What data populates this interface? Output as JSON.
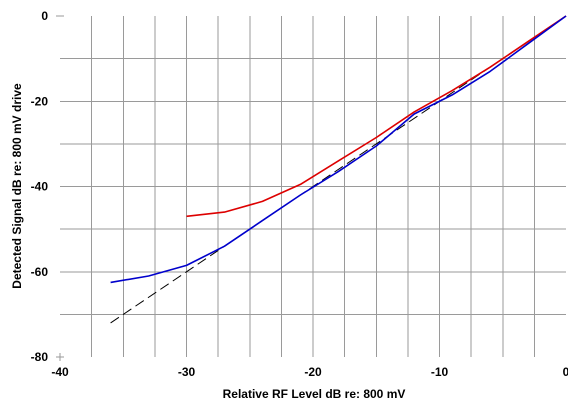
{
  "chart_data": {
    "type": "line",
    "title": "",
    "xlabel": "Relative RF Level dB re: 800 mV",
    "ylabel": "Detected Signal dB re: 800 mV drive",
    "xlim": [
      -40,
      0
    ],
    "ylim": [
      -80,
      0
    ],
    "xticks": [
      -40,
      -30,
      -20,
      -10,
      0
    ],
    "xtick_labels": [
      "-40",
      "-30",
      "-20",
      "-10",
      "0"
    ],
    "yticks": [
      -80,
      -60,
      -40,
      -20,
      0
    ],
    "ytick_labels": [
      "-80",
      "-60",
      "-40",
      "-20",
      "0"
    ],
    "grid": true,
    "grid_minor_x": 2.5,
    "grid_minor_y": 10,
    "legend": "none",
    "series": [
      {
        "color": "#000000",
        "style": "dashed",
        "x": [
          -36,
          -30,
          -20,
          -10,
          0
        ],
        "y": [
          -72,
          -60,
          -40,
          -20,
          0
        ]
      },
      {
        "color": "#dd0000",
        "style": "solid",
        "x": [
          -30,
          -27,
          -24,
          -21,
          -18,
          -15,
          -12,
          -9,
          -6,
          -3,
          0
        ],
        "y": [
          -47,
          -46,
          -43.5,
          -39.5,
          -34,
          -28.5,
          -22.5,
          -17.5,
          -12,
          -6,
          0
        ]
      },
      {
        "color": "#0000cc",
        "style": "solid",
        "x": [
          -36,
          -33,
          -30,
          -27,
          -24,
          -21,
          -18,
          -15,
          -12,
          -9,
          -6,
          -3,
          0
        ],
        "y": [
          -62.5,
          -61,
          -58.5,
          -54,
          -48,
          -42,
          -36.5,
          -30.5,
          -23,
          -18.5,
          -13,
          -6.5,
          0
        ]
      }
    ]
  }
}
